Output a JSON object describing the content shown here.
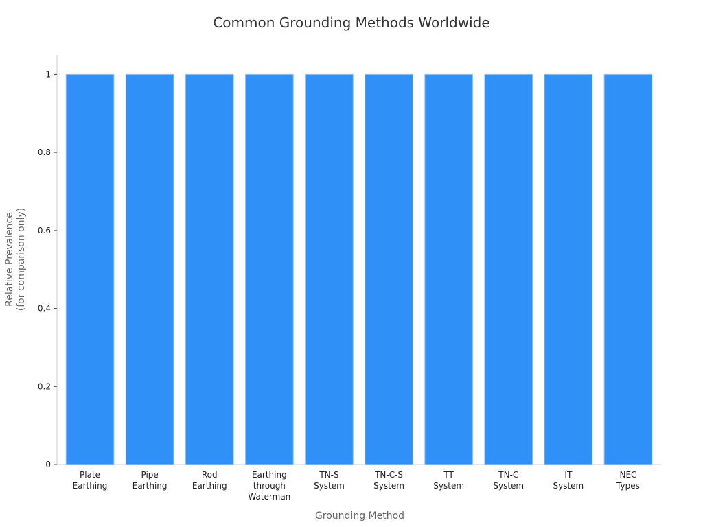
{
  "chart_data": {
    "type": "bar",
    "title": "Common Grounding Methods Worldwide",
    "xlabel": "Grounding Method",
    "ylabel": [
      "Relative Prevalence",
      "(for comparison only)"
    ],
    "categories": [
      [
        "Plate",
        "Earthing"
      ],
      [
        "Pipe",
        "Earthing"
      ],
      [
        "Rod",
        "Earthing"
      ],
      [
        "Earthing",
        "through",
        "Waterman"
      ],
      [
        "TN-S",
        "System"
      ],
      [
        "TN-C-S",
        "System"
      ],
      [
        "TT",
        "System"
      ],
      [
        "TN-C",
        "System"
      ],
      [
        "IT",
        "System"
      ],
      [
        "NEC",
        "Types"
      ]
    ],
    "values": [
      1,
      1,
      1,
      1,
      1,
      1,
      1,
      1,
      1,
      1
    ],
    "ylim": [
      0,
      1.05
    ],
    "yticks": [
      0,
      0.2,
      0.4,
      0.6,
      0.8,
      1
    ],
    "ytick_labels": [
      "0",
      "0.2",
      "0.4",
      "0.6",
      "0.8",
      "1"
    ],
    "grid": false,
    "legend": "none",
    "colors": {
      "bar": "#2f91f8",
      "bar_edge": "#8cc0fb",
      "axis": "#cccccc"
    }
  }
}
